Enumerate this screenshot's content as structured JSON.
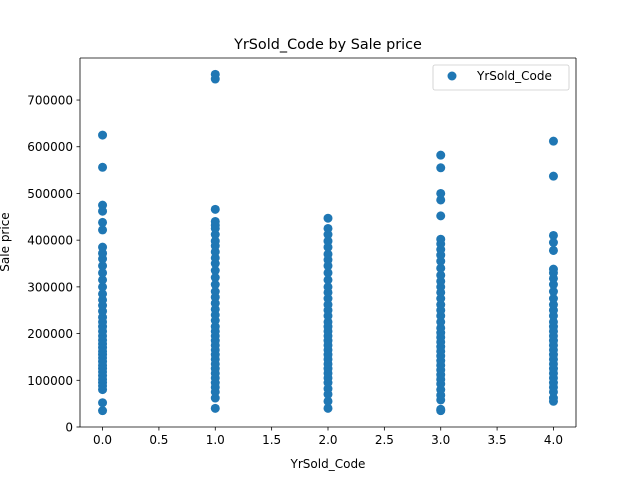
{
  "chart_data": {
    "type": "scatter",
    "title": "YrSold_Code by Sale price",
    "xlabel": "YrSold_Code",
    "ylabel": "Sale price",
    "xlim": [
      -0.2,
      4.2
    ],
    "ylim": [
      0,
      790000
    ],
    "xticks": [
      0.0,
      0.5,
      1.0,
      1.5,
      2.0,
      2.5,
      3.0,
      3.5,
      4.0
    ],
    "xtick_labels": [
      "0.0",
      "0.5",
      "1.0",
      "1.5",
      "2.0",
      "2.5",
      "3.0",
      "3.5",
      "4.0"
    ],
    "yticks": [
      0,
      100000,
      200000,
      300000,
      400000,
      500000,
      600000,
      700000
    ],
    "ytick_labels": [
      "0",
      "100000",
      "200000",
      "300000",
      "400000",
      "500000",
      "600000",
      "700000"
    ],
    "grid": false,
    "legend": {
      "placement": "top-right",
      "entries": [
        "YrSold_Code"
      ]
    },
    "series": [
      {
        "name": "YrSold_Code",
        "color": "#1f77b4",
        "points": [
          [
            0,
            35000
          ],
          [
            0,
            52000
          ],
          [
            0,
            80000
          ],
          [
            0,
            88000
          ],
          [
            0,
            95000
          ],
          [
            0,
            102000
          ],
          [
            0,
            110000
          ],
          [
            0,
            118000
          ],
          [
            0,
            125000
          ],
          [
            0,
            132000
          ],
          [
            0,
            140000
          ],
          [
            0,
            148000
          ],
          [
            0,
            155000
          ],
          [
            0,
            162000
          ],
          [
            0,
            170000
          ],
          [
            0,
            178000
          ],
          [
            0,
            186000
          ],
          [
            0,
            195000
          ],
          [
            0,
            205000
          ],
          [
            0,
            215000
          ],
          [
            0,
            225000
          ],
          [
            0,
            235000
          ],
          [
            0,
            248000
          ],
          [
            0,
            260000
          ],
          [
            0,
            272000
          ],
          [
            0,
            285000
          ],
          [
            0,
            300000
          ],
          [
            0,
            315000
          ],
          [
            0,
            330000
          ],
          [
            0,
            345000
          ],
          [
            0,
            360000
          ],
          [
            0,
            372000
          ],
          [
            0,
            385000
          ],
          [
            0,
            422000
          ],
          [
            0,
            438000
          ],
          [
            0,
            462000
          ],
          [
            0,
            475000
          ],
          [
            0,
            556000
          ],
          [
            0,
            625000
          ],
          [
            1,
            40000
          ],
          [
            1,
            62000
          ],
          [
            1,
            75000
          ],
          [
            1,
            85000
          ],
          [
            1,
            95000
          ],
          [
            1,
            105000
          ],
          [
            1,
            115000
          ],
          [
            1,
            125000
          ],
          [
            1,
            135000
          ],
          [
            1,
            145000
          ],
          [
            1,
            155000
          ],
          [
            1,
            165000
          ],
          [
            1,
            175000
          ],
          [
            1,
            185000
          ],
          [
            1,
            195000
          ],
          [
            1,
            205000
          ],
          [
            1,
            215000
          ],
          [
            1,
            228000
          ],
          [
            1,
            240000
          ],
          [
            1,
            252000
          ],
          [
            1,
            265000
          ],
          [
            1,
            278000
          ],
          [
            1,
            290000
          ],
          [
            1,
            305000
          ],
          [
            1,
            320000
          ],
          [
            1,
            335000
          ],
          [
            1,
            350000
          ],
          [
            1,
            362000
          ],
          [
            1,
            375000
          ],
          [
            1,
            388000
          ],
          [
            1,
            398000
          ],
          [
            1,
            412000
          ],
          [
            1,
            425000
          ],
          [
            1,
            432000
          ],
          [
            1,
            440000
          ],
          [
            1,
            466000
          ],
          [
            1,
            745000
          ],
          [
            1,
            755000
          ],
          [
            2,
            40000
          ],
          [
            2,
            55000
          ],
          [
            2,
            70000
          ],
          [
            2,
            82000
          ],
          [
            2,
            95000
          ],
          [
            2,
            105000
          ],
          [
            2,
            115000
          ],
          [
            2,
            125000
          ],
          [
            2,
            135000
          ],
          [
            2,
            145000
          ],
          [
            2,
            155000
          ],
          [
            2,
            165000
          ],
          [
            2,
            175000
          ],
          [
            2,
            185000
          ],
          [
            2,
            195000
          ],
          [
            2,
            205000
          ],
          [
            2,
            215000
          ],
          [
            2,
            225000
          ],
          [
            2,
            238000
          ],
          [
            2,
            250000
          ],
          [
            2,
            262000
          ],
          [
            2,
            275000
          ],
          [
            2,
            288000
          ],
          [
            2,
            300000
          ],
          [
            2,
            315000
          ],
          [
            2,
            330000
          ],
          [
            2,
            345000
          ],
          [
            2,
            358000
          ],
          [
            2,
            370000
          ],
          [
            2,
            385000
          ],
          [
            2,
            398000
          ],
          [
            2,
            412000
          ],
          [
            2,
            425000
          ],
          [
            2,
            447000
          ],
          [
            3,
            35000
          ],
          [
            3,
            38000
          ],
          [
            3,
            58000
          ],
          [
            3,
            68000
          ],
          [
            3,
            80000
          ],
          [
            3,
            92000
          ],
          [
            3,
            102000
          ],
          [
            3,
            112000
          ],
          [
            3,
            122000
          ],
          [
            3,
            132000
          ],
          [
            3,
            142000
          ],
          [
            3,
            152000
          ],
          [
            3,
            162000
          ],
          [
            3,
            172000
          ],
          [
            3,
            182000
          ],
          [
            3,
            192000
          ],
          [
            3,
            202000
          ],
          [
            3,
            212000
          ],
          [
            3,
            225000
          ],
          [
            3,
            238000
          ],
          [
            3,
            250000
          ],
          [
            3,
            262000
          ],
          [
            3,
            275000
          ],
          [
            3,
            288000
          ],
          [
            3,
            300000
          ],
          [
            3,
            312000
          ],
          [
            3,
            325000
          ],
          [
            3,
            340000
          ],
          [
            3,
            355000
          ],
          [
            3,
            368000
          ],
          [
            3,
            380000
          ],
          [
            3,
            392000
          ],
          [
            3,
            402000
          ],
          [
            3,
            452000
          ],
          [
            3,
            486000
          ],
          [
            3,
            500000
          ],
          [
            3,
            555000
          ],
          [
            3,
            582000
          ],
          [
            4,
            55000
          ],
          [
            4,
            62000
          ],
          [
            4,
            75000
          ],
          [
            4,
            85000
          ],
          [
            4,
            95000
          ],
          [
            4,
            105000
          ],
          [
            4,
            115000
          ],
          [
            4,
            125000
          ],
          [
            4,
            135000
          ],
          [
            4,
            145000
          ],
          [
            4,
            155000
          ],
          [
            4,
            165000
          ],
          [
            4,
            175000
          ],
          [
            4,
            185000
          ],
          [
            4,
            195000
          ],
          [
            4,
            205000
          ],
          [
            4,
            215000
          ],
          [
            4,
            225000
          ],
          [
            4,
            238000
          ],
          [
            4,
            250000
          ],
          [
            4,
            262000
          ],
          [
            4,
            275000
          ],
          [
            4,
            290000
          ],
          [
            4,
            305000
          ],
          [
            4,
            318000
          ],
          [
            4,
            330000
          ],
          [
            4,
            338000
          ],
          [
            4,
            378000
          ],
          [
            4,
            395000
          ],
          [
            4,
            410000
          ],
          [
            4,
            537000
          ],
          [
            4,
            612000
          ]
        ]
      }
    ]
  }
}
